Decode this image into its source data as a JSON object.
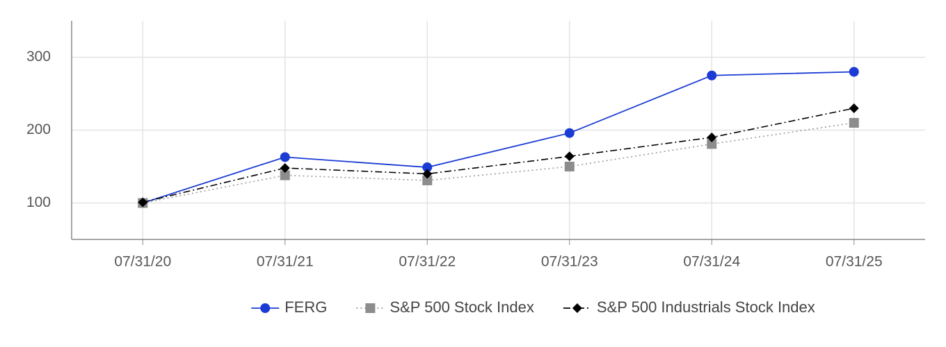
{
  "chart_data": {
    "type": "line",
    "categories": [
      "07/31/20",
      "07/31/21",
      "07/31/22",
      "07/31/23",
      "07/31/24",
      "07/31/25"
    ],
    "series": [
      {
        "name": "FERG",
        "color": "#1a3bd4",
        "marker": "circle",
        "line_style": "solid",
        "values": [
          100,
          163,
          149,
          196,
          275,
          280
        ]
      },
      {
        "name": "S&P 500 Stock Index",
        "color": "#999999",
        "marker": "square",
        "line_style": "dotted",
        "values": [
          100,
          138,
          131,
          150,
          181,
          210
        ]
      },
      {
        "name": "S&P 500 Industrials Stock Index",
        "color": "#000000",
        "marker": "diamond",
        "line_style": "dashdot",
        "values": [
          101,
          148,
          140,
          164,
          190,
          230
        ]
      }
    ],
    "ylim": [
      50,
      350
    ],
    "yticks": [
      100,
      200,
      300
    ],
    "grid": true,
    "legend": "bottom"
  }
}
